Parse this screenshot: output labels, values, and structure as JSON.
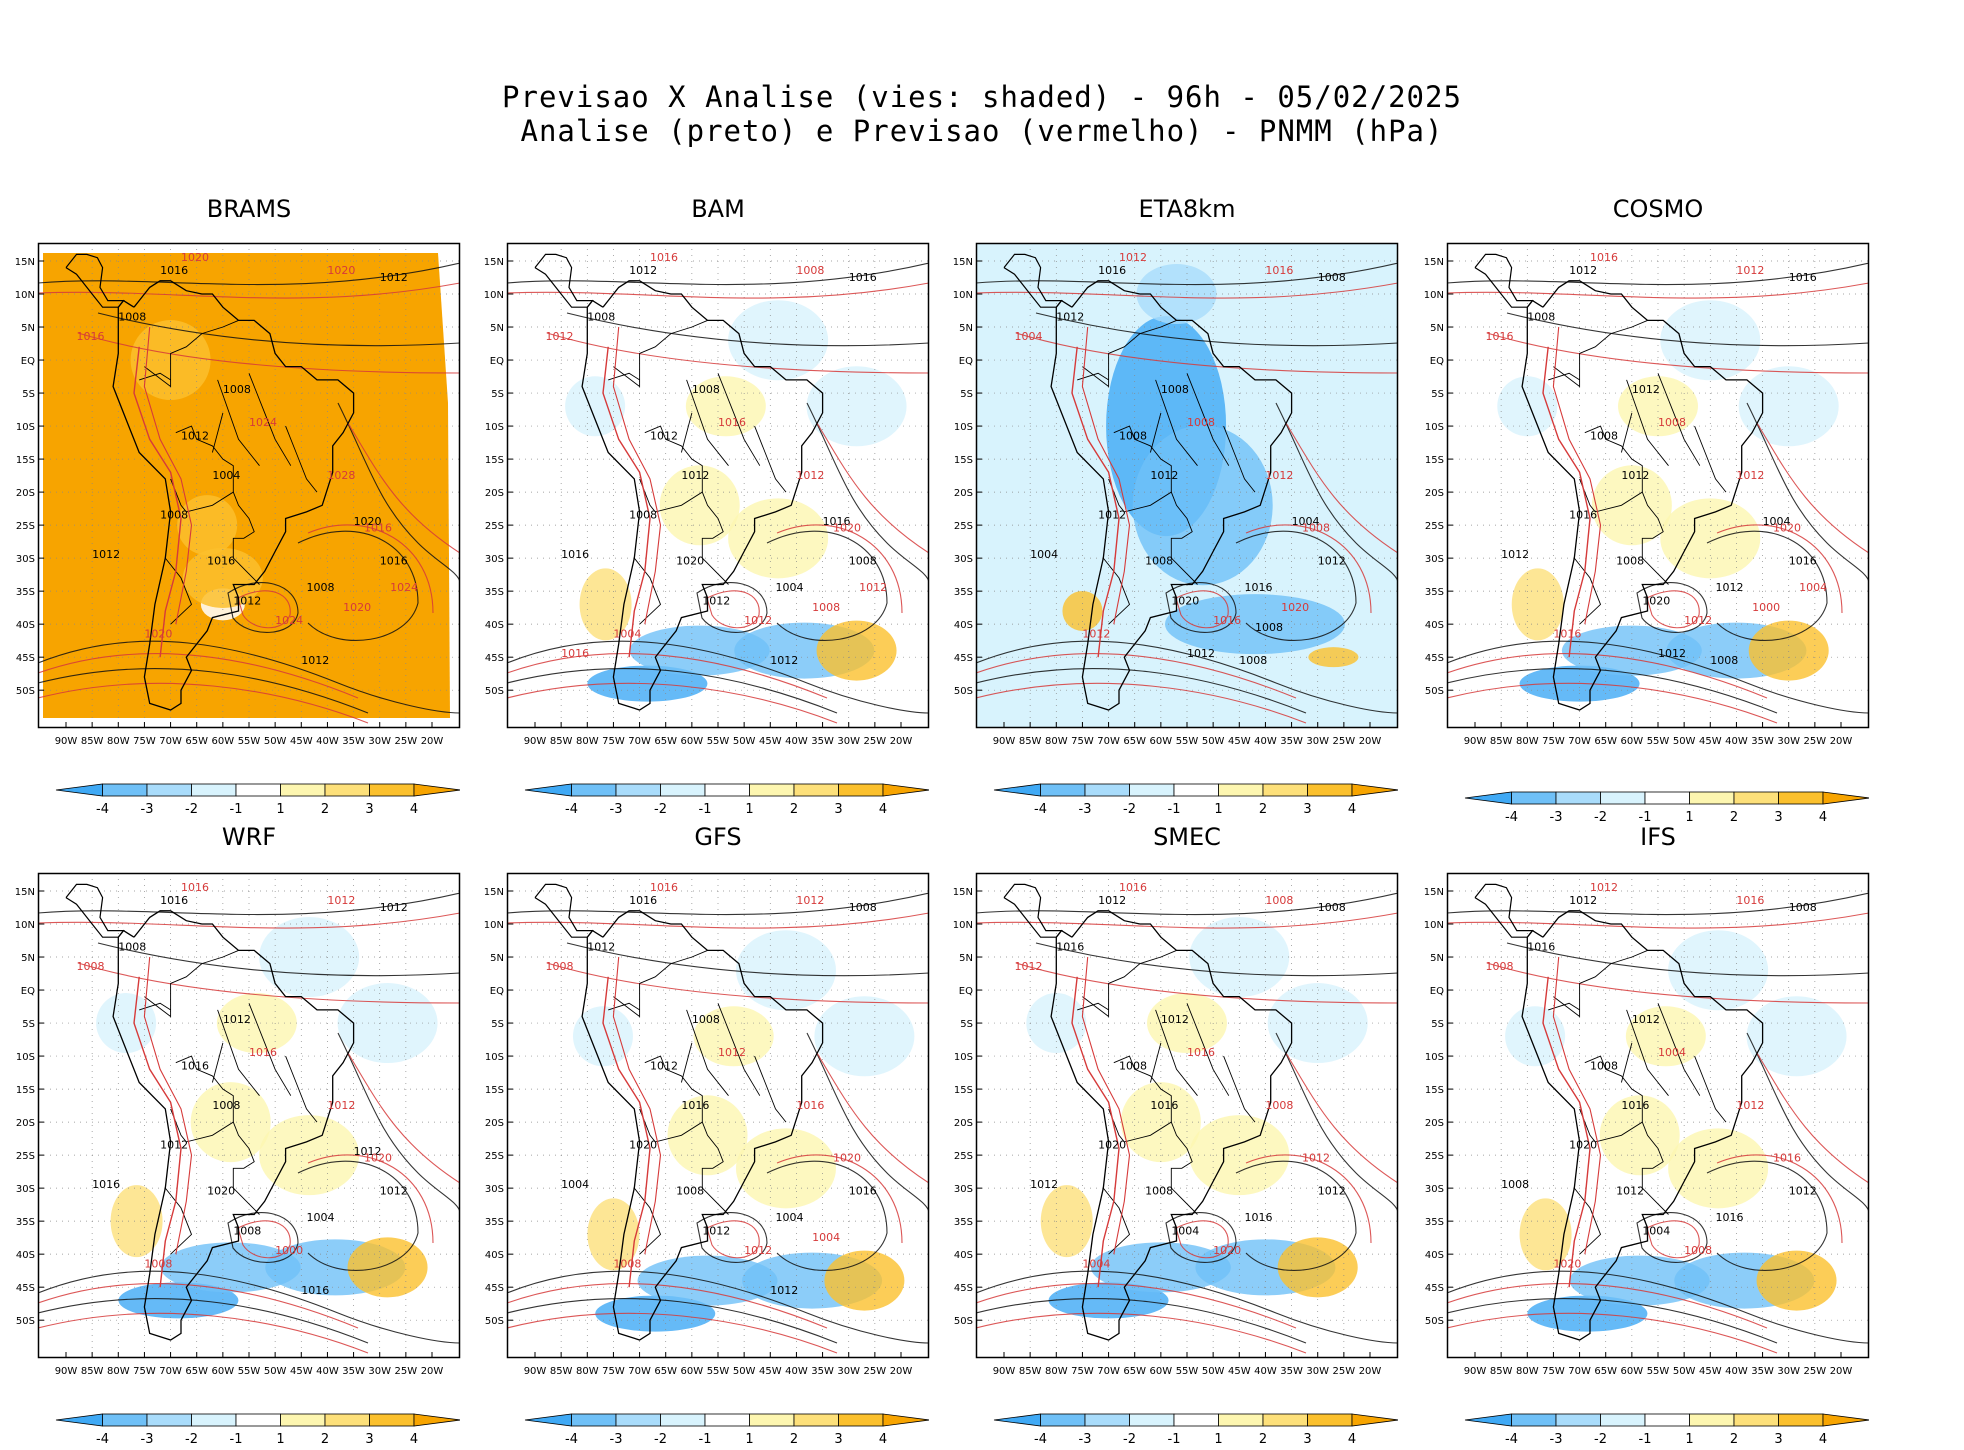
{
  "header": {
    "line1": "Previsao X Analise (vies: shaded) - 96h - 05/02/2025",
    "line2": "Analise (preto) e Previsao (vermelho) - PNMM (hPa)"
  },
  "lat_labels": [
    "15N",
    "10N",
    "5N",
    "EQ",
    "5S",
    "10S",
    "15S",
    "20S",
    "25S",
    "30S",
    "35S",
    "40S",
    "45S",
    "50S"
  ],
  "lon_labels": [
    "90W",
    "85W",
    "80W",
    "75W",
    "70W",
    "65W",
    "60W",
    "55W",
    "50W",
    "45W",
    "40W",
    "35W",
    "30W",
    "25W",
    "20W"
  ],
  "colorbar": {
    "labels": [
      "-4",
      "-3",
      "-2",
      "-1",
      "1",
      "2",
      "3",
      "4"
    ],
    "colors": [
      "#3fa9f5",
      "#6fc0f7",
      "#a9dcfb",
      "#d8f3fd",
      "#ffffff",
      "#fdf6b0",
      "#fde07a",
      "#fbc02d",
      "#f7a400"
    ]
  },
  "panels": [
    {
      "name": "BRAMS",
      "bias": "strong-positive",
      "pressure_labels_black": [
        "1016",
        "1012",
        "1008",
        "1008",
        "1012",
        "1004",
        "1008",
        "1012",
        "1016",
        "1012",
        "1008",
        "1016",
        "1012",
        "1020"
      ],
      "pressure_labels_red": [
        "1020",
        "1020",
        "1016",
        "1024",
        "1028",
        "1016",
        "1020",
        "1024",
        "1020",
        "1024"
      ]
    },
    {
      "name": "BAM",
      "bias": "mixed",
      "pressure_labels_black": [
        "1012",
        "1016",
        "1008",
        "1008",
        "1012",
        "1012",
        "1008",
        "1016",
        "1020",
        "1012",
        "1004",
        "1008",
        "1012",
        "1016"
      ],
      "pressure_labels_red": [
        "1016",
        "1008",
        "1012",
        "1016",
        "1012",
        "1020",
        "1004",
        "1012",
        "1008",
        "1012",
        "1016"
      ]
    },
    {
      "name": "ETA8km",
      "bias": "negative",
      "pressure_labels_black": [
        "1016",
        "1008",
        "1012",
        "1008",
        "1008",
        "1012",
        "1012",
        "1004",
        "1008",
        "1020",
        "1016",
        "1012",
        "1008",
        "1004",
        "1012",
        "1008"
      ],
      "pressure_labels_red": [
        "1012",
        "1016",
        "1004",
        "1008",
        "1012",
        "1008",
        "1012",
        "1016",
        "1020"
      ]
    },
    {
      "name": "COSMO",
      "bias": "mixed",
      "pressure_labels_black": [
        "1012",
        "1016",
        "1008",
        "1012",
        "1008",
        "1012",
        "1016",
        "1012",
        "1008",
        "1020",
        "1012",
        "1016",
        "1008",
        "1004",
        "1012"
      ],
      "pressure_labels_red": [
        "1016",
        "1012",
        "1016",
        "1008",
        "1012",
        "1020",
        "1016",
        "1012",
        "1000",
        "1004"
      ]
    },
    {
      "name": "WRF",
      "bias": "mixed",
      "pressure_labels_black": [
        "1016",
        "1012",
        "1008",
        "1012",
        "1016",
        "1008",
        "1012",
        "1016",
        "1020",
        "1008",
        "1004",
        "1012",
        "1016",
        "1012"
      ],
      "pressure_labels_red": [
        "1016",
        "1012",
        "1008",
        "1016",
        "1012",
        "1020",
        "1008",
        "1000"
      ]
    },
    {
      "name": "GFS",
      "bias": "mixed",
      "pressure_labels_black": [
        "1016",
        "1008",
        "1012",
        "1008",
        "1012",
        "1016",
        "1020",
        "1004",
        "1008",
        "1012",
        "1004",
        "1016",
        "1012"
      ],
      "pressure_labels_red": [
        "1016",
        "1012",
        "1008",
        "1012",
        "1016",
        "1020",
        "1008",
        "1012",
        "1004"
      ]
    },
    {
      "name": "SMEC",
      "bias": "mixed",
      "pressure_labels_black": [
        "1012",
        "1008",
        "1016",
        "1012",
        "1008",
        "1016",
        "1020",
        "1012",
        "1008",
        "1004",
        "1016",
        "1012"
      ],
      "pressure_labels_red": [
        "1016",
        "1008",
        "1012",
        "1016",
        "1008",
        "1012",
        "1004",
        "1020"
      ]
    },
    {
      "name": "IFS",
      "bias": "mixed",
      "pressure_labels_black": [
        "1012",
        "1008",
        "1016",
        "1012",
        "1008",
        "1016",
        "1020",
        "1008",
        "1012",
        "1004",
        "1016",
        "1012"
      ],
      "pressure_labels_red": [
        "1012",
        "1016",
        "1008",
        "1004",
        "1012",
        "1016",
        "1020",
        "1008"
      ]
    }
  ]
}
